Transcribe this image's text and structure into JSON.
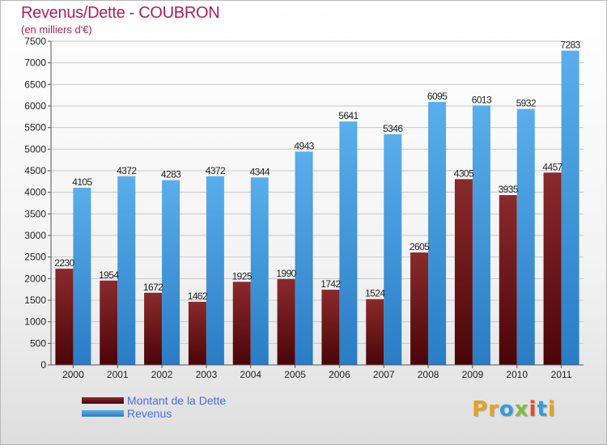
{
  "title": "Revenus/Dette - COUBRON",
  "subtitle": "(en milliers d'€)",
  "colors": {
    "dette": "#7a1f22",
    "revenus": "#4a9ee2",
    "title": "#b01f5a"
  },
  "logo": {
    "text": "Proxiti",
    "letters": [
      {
        "ch": "P",
        "color": "#e8a020"
      },
      {
        "ch": "r",
        "color": "#e8a020"
      },
      {
        "ch": "o",
        "color": "#2f9fd8"
      },
      {
        "ch": "x",
        "color": "#7bbf3a"
      },
      {
        "ch": "i",
        "color": "#e84a2a"
      },
      {
        "ch": "t",
        "color": "#2f9fd8"
      },
      {
        "ch": "i",
        "color": "#e8a020"
      }
    ]
  },
  "chart_data": {
    "type": "bar",
    "title": "Revenus/Dette - COUBRON",
    "subtitle": "(en milliers d'€)",
    "categories": [
      "2000",
      "2001",
      "2002",
      "2003",
      "2004",
      "2005",
      "2006",
      "2007",
      "2008",
      "2009",
      "2010",
      "2011"
    ],
    "series": [
      {
        "name": "Montant de la Dette",
        "values": [
          2230,
          1954,
          1672,
          1462,
          1925,
          1990,
          1742,
          1524,
          2605,
          4305,
          3935,
          4457
        ]
      },
      {
        "name": "Revenus",
        "values": [
          4105,
          4372,
          4283,
          4372,
          4344,
          4943,
          5641,
          5346,
          6095,
          6013,
          5932,
          7283
        ]
      }
    ],
    "ylim": [
      0,
      7500
    ],
    "yticks": [
      0,
      500,
      1000,
      1500,
      2000,
      2500,
      3000,
      3500,
      4000,
      4500,
      5000,
      5500,
      6000,
      6500,
      7000,
      7500
    ],
    "grid": true,
    "legend": "bottom-left"
  }
}
